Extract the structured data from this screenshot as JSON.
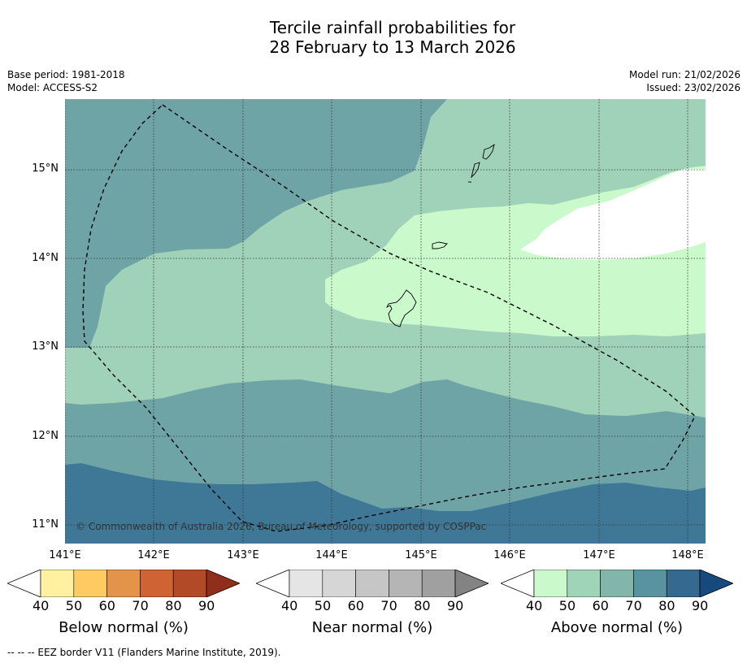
{
  "title_line1": "Tercile rainfall probabilities for",
  "title_line2": "28 February to 13 March 2026",
  "base_period": "Base period: 1981-2018",
  "model": "Model: ACCESS-S2",
  "model_run": "Model run: 21/02/2026",
  "issued": "Issued: 23/02/2026",
  "copyright": "© Commonwealth of Australia 2026, Bureau of Meteorology, supported by COSPPac",
  "latitudes": [
    "15°N",
    "14°N",
    "13°N",
    "12°N",
    "11°N"
  ],
  "longitudes": [
    "141°E",
    "142°E",
    "143°E",
    "144°E",
    "145°E",
    "146°E",
    "147°E",
    "148°E"
  ],
  "colorbars": [
    {
      "title": "Below normal (%)",
      "ticks": [
        "40",
        "50",
        "60",
        "70",
        "80",
        "90"
      ],
      "colors": [
        "#ffffff",
        "#fff1a0",
        "#fecb63",
        "#e3944a",
        "#cf6334",
        "#b34a27",
        "#8f2f1b"
      ]
    },
    {
      "title": "Near normal (%)",
      "ticks": [
        "40",
        "50",
        "60",
        "70",
        "80",
        "90"
      ],
      "colors": [
        "#ffffff",
        "#e5e5e5",
        "#d6d6d6",
        "#c6c6c6",
        "#b5b5b5",
        "#a0a0a0",
        "#838383"
      ]
    },
    {
      "title": "Above normal (%)",
      "ticks": [
        "40",
        "50",
        "60",
        "70",
        "80",
        "90"
      ],
      "colors": [
        "#ffffff",
        "#caf9cb",
        "#a0d4b8",
        "#82b6ab",
        "#5a93a0",
        "#35698f",
        "#174a7c"
      ]
    }
  ],
  "map_colors": {
    "c50": "#caf9cb",
    "c60": "#a0d1b9",
    "c70": "#6fa4a7",
    "c80": "#3f7896"
  },
  "footer": "-- -- -- EEZ border V11 (Flanders Marine Institute, 2019)."
}
